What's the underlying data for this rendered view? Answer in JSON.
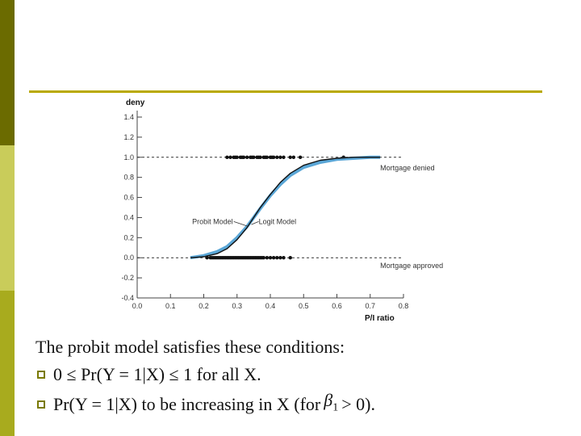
{
  "slide": {
    "intro": "The probit model satisfies these conditions:",
    "bullet_1": "0 ≤ Pr(Y = 1|X) ≤ 1 for all X.",
    "bullet_2_before": "Pr(Y = 1|X) to be increasing in X (for",
    "bullet_2_symbol": "β",
    "bullet_2_subscript": "1",
    "bullet_2_after": "> 0)."
  },
  "chart_data": {
    "type": "line",
    "ylabel": "deny",
    "xlabel": "P/I ratio",
    "xlim": [
      0.0,
      0.8
    ],
    "ylim": [
      -0.4,
      1.4
    ],
    "x_ticks": [
      "0.0",
      "0.1",
      "0.2",
      "0.3",
      "0.4",
      "0.5",
      "0.6",
      "0.7",
      "0.8"
    ],
    "y_ticks": [
      "-0.4",
      "-0.2",
      "0.0",
      "0.2",
      "0.4",
      "0.6",
      "0.8",
      "1.0",
      "1.2",
      "1.4"
    ],
    "series": [
      {
        "name": "Probit Model",
        "color": "#111111",
        "x": [
          0.16,
          0.2,
          0.24,
          0.27,
          0.3,
          0.33,
          0.35,
          0.37,
          0.4,
          0.43,
          0.46,
          0.5,
          0.55,
          0.6,
          0.65,
          0.7,
          0.73
        ],
        "y": [
          0.0,
          0.01,
          0.04,
          0.09,
          0.18,
          0.3,
          0.4,
          0.5,
          0.63,
          0.75,
          0.84,
          0.92,
          0.97,
          0.99,
          1.0,
          1.0,
          1.0
        ]
      },
      {
        "name": "Logit Model",
        "color": "#5aa6d6",
        "x": [
          0.16,
          0.2,
          0.24,
          0.27,
          0.3,
          0.33,
          0.35,
          0.37,
          0.4,
          0.43,
          0.46,
          0.5,
          0.55,
          0.6,
          0.65,
          0.7,
          0.73
        ],
        "y": [
          0.0,
          0.02,
          0.06,
          0.11,
          0.2,
          0.31,
          0.4,
          0.49,
          0.62,
          0.73,
          0.82,
          0.9,
          0.95,
          0.98,
          0.99,
          1.0,
          1.0
        ]
      }
    ],
    "observations_denied": {
      "y": 1.0,
      "x": [
        0.27,
        0.28,
        0.29,
        0.295,
        0.3,
        0.31,
        0.315,
        0.32,
        0.33,
        0.34,
        0.345,
        0.35,
        0.36,
        0.365,
        0.37,
        0.38,
        0.385,
        0.39,
        0.4,
        0.405,
        0.41,
        0.42,
        0.43,
        0.44,
        0.46,
        0.47,
        0.49,
        0.62
      ]
    },
    "observations_approved": {
      "y": 0.0,
      "x": [
        0.21,
        0.22,
        0.225,
        0.23,
        0.235,
        0.24,
        0.245,
        0.25,
        0.255,
        0.26,
        0.265,
        0.27,
        0.275,
        0.28,
        0.285,
        0.29,
        0.295,
        0.3,
        0.305,
        0.31,
        0.315,
        0.32,
        0.325,
        0.33,
        0.335,
        0.34,
        0.345,
        0.35,
        0.355,
        0.36,
        0.365,
        0.37,
        0.375,
        0.38,
        0.39,
        0.4,
        0.41,
        0.42,
        0.43,
        0.44,
        0.46
      ]
    },
    "annotations": [
      {
        "text": "Mortgage denied"
      },
      {
        "text": "Mortgage approved"
      },
      {
        "text": "Probit Model"
      },
      {
        "text": "Logit Model"
      }
    ]
  }
}
